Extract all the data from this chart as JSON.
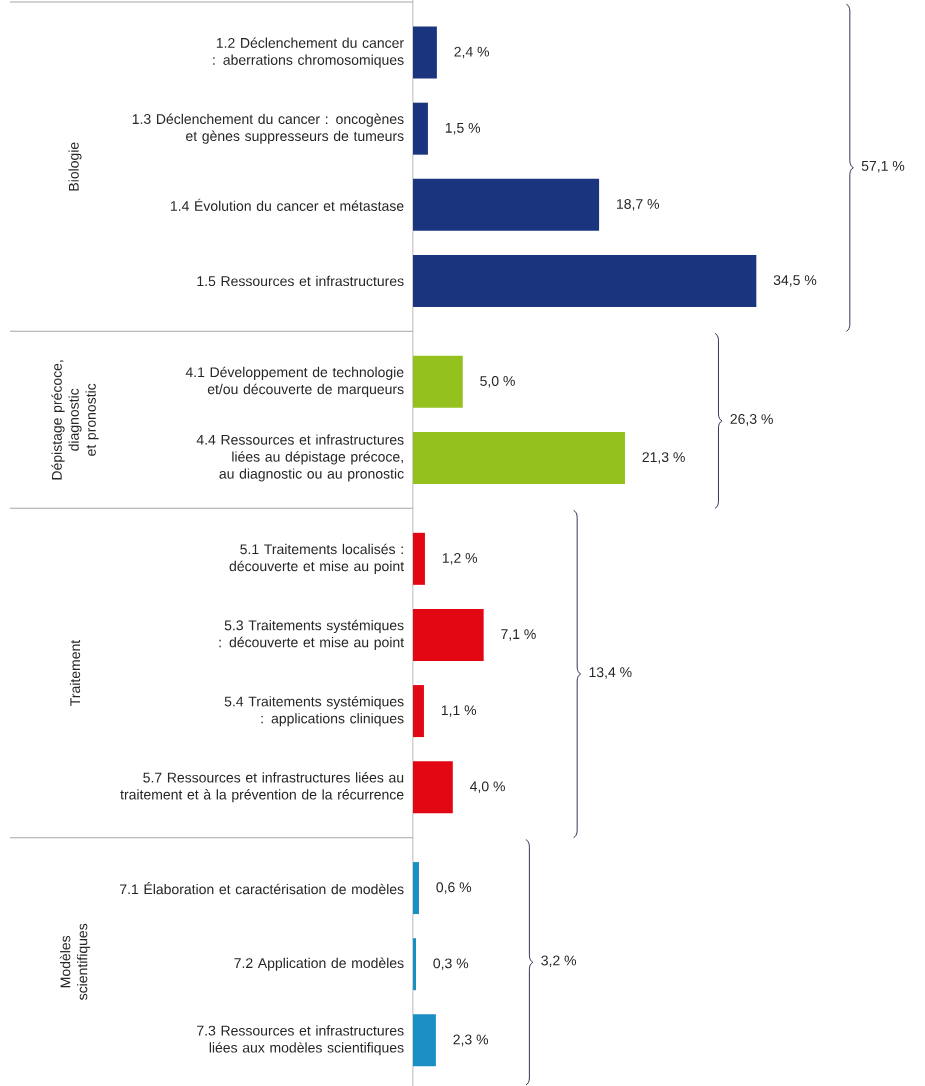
{
  "chart_data": {
    "type": "bar",
    "orientation": "horizontal",
    "categories": [
      "1.2 Déclenchement du cancer : aberrations chromosomiques",
      "1.3 Déclenchement du cancer : oncogènes et gènes suppresseurs de tumeurs",
      "1.4 Évolution du cancer et métastase",
      "1.5 Ressources et infrastructures",
      "4.1 Développement de technologie et/ou découverte de marqueurs",
      "4.4 Ressources et infrastructures liées au dépistage précoce, au diagnostic ou au pronostic",
      "5.1 Traitements localisés : découverte et mise au point",
      "5.3  Traitements systémiques : découverte et mise au point",
      "5.4 Traitements systémiques : applications cliniques",
      "5.7 Ressources et infrastructures liées au traitement et à la prévention de la récurrence",
      "7.1 Élaboration et caractérisation de modèles",
      "7.2 Application de modèles",
      "7.3 Ressources et infrastructures liées aux modèles scientifiques"
    ],
    "values": [
      2.4,
      1.5,
      18.7,
      34.5,
      5.0,
      21.3,
      1.2,
      7.1,
      1.1,
      4.0,
      0.6,
      0.3,
      2.3
    ],
    "colors": [
      "#1b347e",
      "#1b347e",
      "#1b347e",
      "#1b347e",
      "#95c11f",
      "#95c11f",
      "#e30613",
      "#e30613",
      "#e30613",
      "#e30613",
      "#1a8fc4",
      "#1a8fc4",
      "#1a8fc4"
    ],
    "value_labels": [
      "2,4 %",
      "1,5 %",
      "18,7 %",
      "34,5 %",
      "5,0 %",
      "21,3 %",
      "1,2 %",
      "7,1 %",
      "1,1 %",
      "4,0 %",
      "0,6 %",
      "0,3 %",
      "2,3 %"
    ],
    "annotations": [
      "Biologie",
      "57,1 %",
      "Dépistage précoce, diagnostic et pronostic",
      "26,3 %",
      "Traitement",
      "13,4 %",
      "Modèles scientifiques",
      "3,2 %"
    ]
  }
}
